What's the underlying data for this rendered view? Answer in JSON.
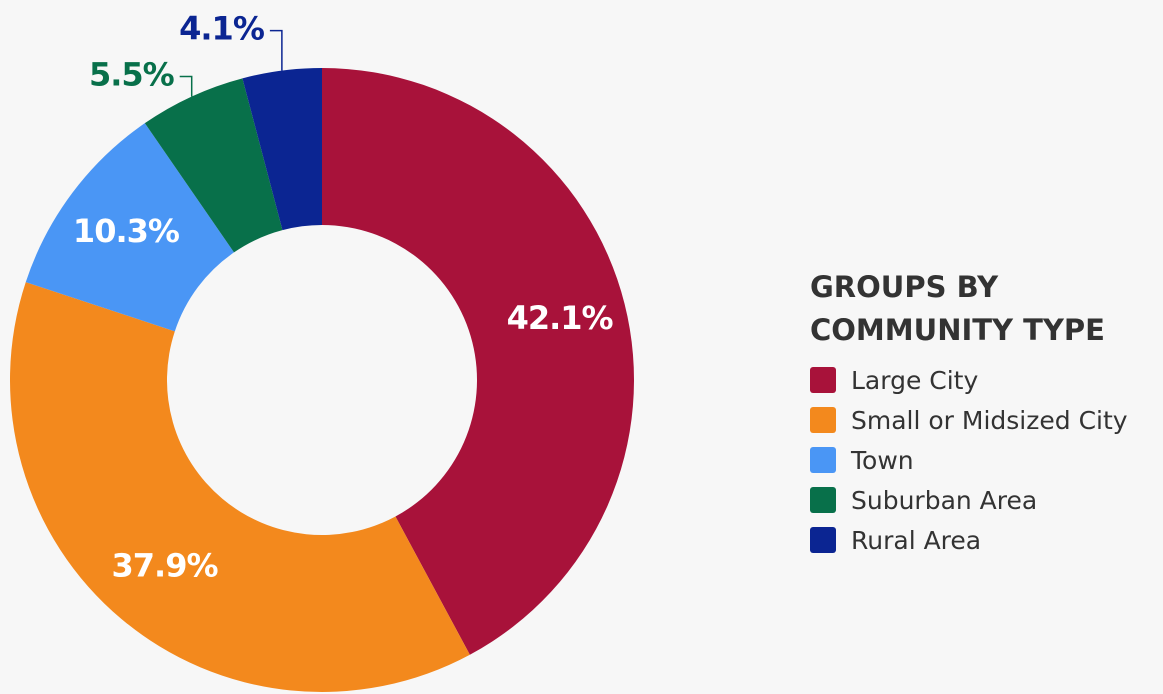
{
  "chart_data": {
    "type": "donut",
    "legend_title": "GROUPS BY COMMUNITY TYPE",
    "categories": [
      "Large City",
      "Small or Midsized City",
      "Town",
      "Suburban Area",
      "Rural Area"
    ],
    "values": [
      42.1,
      37.9,
      10.3,
      5.5,
      4.1
    ],
    "value_labels": [
      "42.1%",
      "37.9%",
      "10.3%",
      "5.5%",
      "4.1%"
    ],
    "colors": [
      "#a8123a",
      "#f3891d",
      "#4a96f5",
      "#08704a",
      "#0b2592"
    ],
    "legend": "right"
  }
}
